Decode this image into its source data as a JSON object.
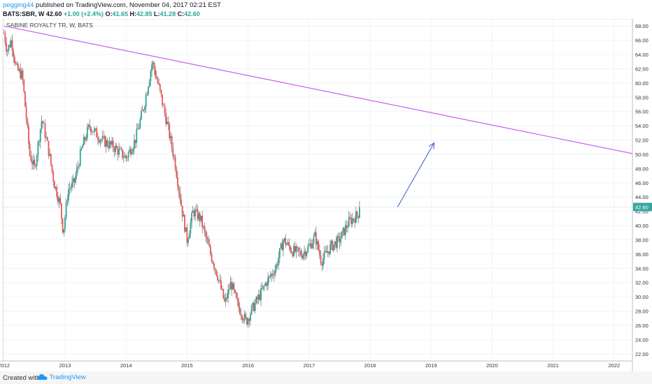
{
  "header": {
    "author": "pegging44",
    "published_text": "published on TradingView.com, November 04, 2017 02:21 EST",
    "symbol": "BATS:SBR, W",
    "last": "42.60",
    "change": "+1.00 (+2.4%)",
    "o_label": "O:",
    "o": "41.65",
    "h_label": "H:",
    "h": "42.85",
    "l_label": "L:",
    "l": "41.28",
    "c_label": "C:",
    "c": "42.60"
  },
  "footer": {
    "created_with": "Created with",
    "brand": "TradingView"
  },
  "chart_data": {
    "type": "candlestick",
    "title": "SABINE ROYALTY TR, W, BATS",
    "colors": {
      "up": "#26a69a",
      "down": "#ef5350",
      "trendline": "#c75ff0",
      "arrow": "#5b6bd6",
      "price_label_bg": "#36a6a0",
      "grid": "#eef0f3"
    },
    "x_range": [
      2011.98,
      2022.3
    ],
    "y_range": [
      21,
      69
    ],
    "x_ticks": [
      "2012",
      "2013",
      "2014",
      "2015",
      "2016",
      "2017",
      "2018",
      "2019",
      "2020",
      "2021",
      "2022"
    ],
    "y_ticks": [
      "22.00",
      "24.00",
      "26.00",
      "28.00",
      "30.00",
      "32.00",
      "34.00",
      "36.00",
      "38.00",
      "40.00",
      "42.00",
      "44.00",
      "46.00",
      "48.00",
      "50.00",
      "52.00",
      "54.00",
      "56.00",
      "58.00",
      "60.00",
      "62.00",
      "64.00",
      "66.00",
      "68.00"
    ],
    "last_price": 42.6,
    "last_price_label": "42.60",
    "price_keypoints": [
      [
        2012.0,
        67
      ],
      [
        2012.05,
        64.5
      ],
      [
        2012.12,
        66
      ],
      [
        2012.2,
        62
      ],
      [
        2012.3,
        61
      ],
      [
        2012.42,
        50
      ],
      [
        2012.5,
        48
      ],
      [
        2012.62,
        55
      ],
      [
        2012.72,
        51
      ],
      [
        2012.82,
        46
      ],
      [
        2012.92,
        43
      ],
      [
        2012.97,
        39
      ],
      [
        2013.05,
        45
      ],
      [
        2013.15,
        46
      ],
      [
        2013.28,
        51
      ],
      [
        2013.4,
        54
      ],
      [
        2013.6,
        52
      ],
      [
        2013.8,
        51
      ],
      [
        2014.0,
        49.5
      ],
      [
        2014.15,
        52
      ],
      [
        2014.3,
        57
      ],
      [
        2014.43,
        63
      ],
      [
        2014.55,
        59
      ],
      [
        2014.68,
        54
      ],
      [
        2014.8,
        49
      ],
      [
        2014.92,
        42
      ],
      [
        2015.0,
        38
      ],
      [
        2015.1,
        42
      ],
      [
        2015.22,
        41
      ],
      [
        2015.35,
        37
      ],
      [
        2015.5,
        33
      ],
      [
        2015.62,
        29
      ],
      [
        2015.72,
        32
      ],
      [
        2015.82,
        29
      ],
      [
        2015.97,
        26.5
      ],
      [
        2016.05,
        28
      ],
      [
        2016.18,
        30
      ],
      [
        2016.3,
        32
      ],
      [
        2016.45,
        34
      ],
      [
        2016.58,
        38
      ],
      [
        2016.72,
        36.5
      ],
      [
        2016.88,
        36
      ],
      [
        2017.0,
        37
      ],
      [
        2017.1,
        38.5
      ],
      [
        2017.2,
        35
      ],
      [
        2017.35,
        37
      ],
      [
        2017.5,
        38
      ],
      [
        2017.65,
        40.5
      ],
      [
        2017.8,
        41.5
      ],
      [
        2017.84,
        42.6
      ]
    ],
    "trendline": {
      "from": [
        2012.0,
        68.0
      ],
      "to": [
        2022.3,
        50.1
      ]
    },
    "arrow": {
      "from": [
        2018.45,
        42.6
      ],
      "to": [
        2019.05,
        51.6
      ]
    }
  }
}
